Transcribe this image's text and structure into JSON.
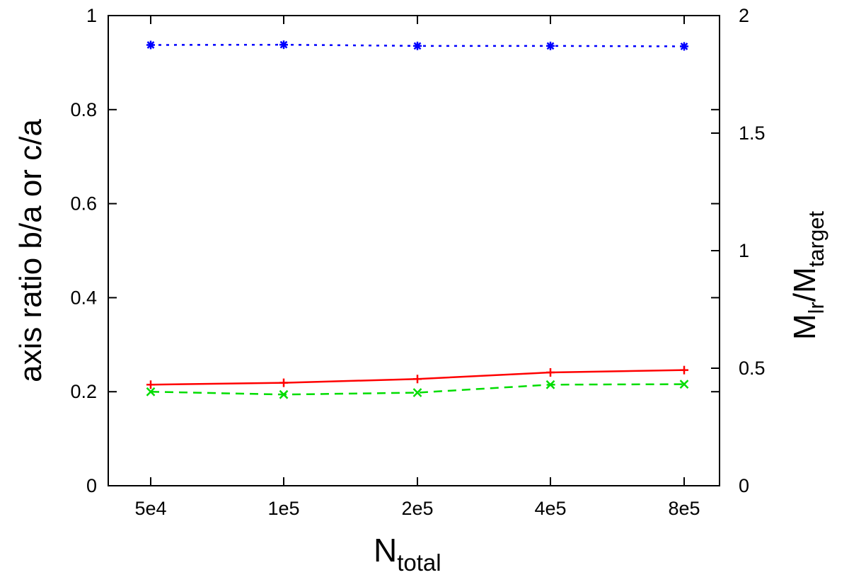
{
  "chart_data": {
    "type": "line",
    "categories": [
      "5e4",
      "1e5",
      "2e5",
      "4e5",
      "8e5"
    ],
    "xlabel": {
      "main": "N",
      "sub": "total"
    },
    "ylabel_left": "axis ratio b/a or c/a",
    "ylabel_right": {
      "m1": "M",
      "sub1": "lr",
      "slash": "/",
      "m2": "M",
      "sub2": "target"
    },
    "ylim_left": [
      0,
      1
    ],
    "ylim_right": [
      0,
      2
    ],
    "yticks_left": [
      "0",
      "0.2",
      "0.4",
      "0.6",
      "0.8",
      "1"
    ],
    "yticks_right": [
      "0",
      "0.5",
      "1",
      "1.5",
      "2"
    ],
    "grid": false,
    "series": [
      {
        "axis": "right",
        "color": "#0000ff",
        "dash": "dotted",
        "marker": "asterisk",
        "values": [
          1.875,
          1.876,
          1.871,
          1.871,
          1.869
        ]
      },
      {
        "axis": "left",
        "color": "#ff0000",
        "dash": "solid",
        "marker": "plus",
        "values": [
          0.215,
          0.219,
          0.227,
          0.241,
          0.246
        ]
      },
      {
        "axis": "left",
        "color": "#00dd00",
        "dash": "dashed",
        "marker": "cross",
        "values": [
          0.2,
          0.194,
          0.198,
          0.215,
          0.216
        ]
      }
    ]
  }
}
